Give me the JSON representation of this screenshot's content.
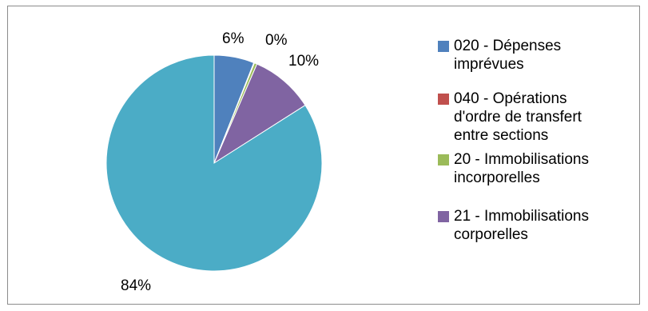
{
  "chart_data": {
    "type": "pie",
    "categories": [
      "020 - Dépenses imprévues",
      "040 - Opérations d'ordre de transfert entre sections",
      "20 - Immobilisations incorporelles",
      "21 - Immobilisations corporelles",
      ""
    ],
    "values": [
      6,
      0.1,
      0.4,
      9.5,
      84
    ],
    "data_labels": [
      "6%",
      "0%",
      "",
      "10%",
      "84%"
    ],
    "colors": [
      "#4f81bd",
      "#c0504d",
      "#9bbb59",
      "#8064a2",
      "#4bacc6"
    ],
    "start_angle_deg": 0,
    "direction": "clockwise",
    "legend_position": "right"
  },
  "legend": {
    "items": [
      {
        "text": "020 - Dépenses\nimprévues",
        "color": "#4f81bd"
      },
      {
        "text": "040 - Opérations\nd'ordre de transfert\nentre sections",
        "color": "#c0504d"
      },
      {
        "text": "20 - Immobilisations\nincorporelles",
        "color": "#9bbb59"
      },
      {
        "text": "21 - Immobilisations\ncorporelles",
        "color": "#8064a2"
      }
    ]
  }
}
